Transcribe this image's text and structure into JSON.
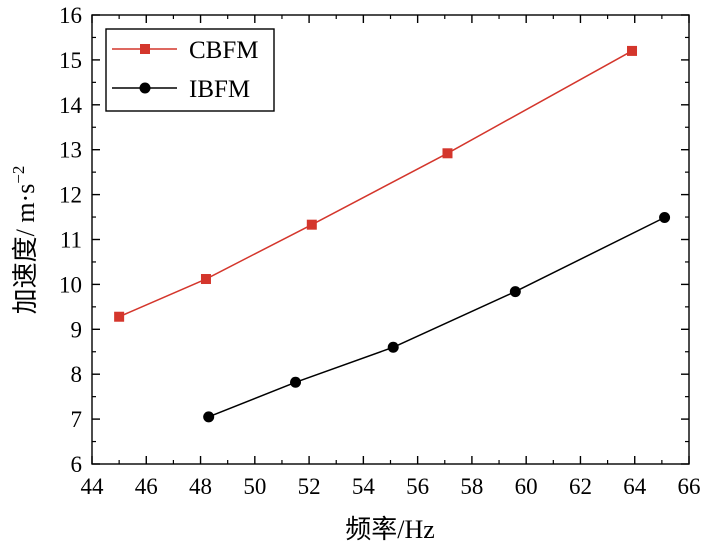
{
  "chart_data": {
    "type": "line",
    "xlabel": "频率/Hz",
    "ylabel_main": "加速度/ m·s",
    "ylabel_sup": "−2",
    "xlim": [
      44,
      66
    ],
    "ylim": [
      6,
      16
    ],
    "xticks": [
      "44",
      "46",
      "48",
      "50",
      "52",
      "54",
      "56",
      "58",
      "60",
      "62",
      "64",
      "66"
    ],
    "yticks": [
      "6",
      "7",
      "8",
      "9",
      "10",
      "11",
      "12",
      "13",
      "14",
      "15",
      "16"
    ],
    "legend_position": "top-left",
    "grid": false,
    "series": [
      {
        "name": "CBFM",
        "color": "#d4362c",
        "marker": "square",
        "x": [
          45.0,
          48.2,
          52.1,
          57.1,
          63.9
        ],
        "y": [
          9.28,
          10.12,
          11.33,
          12.92,
          15.2
        ]
      },
      {
        "name": "IBFM",
        "color": "#000000",
        "marker": "circle",
        "x": [
          48.3,
          51.5,
          55.1,
          59.6,
          65.1
        ],
        "y": [
          7.05,
          7.82,
          8.6,
          9.84,
          11.49
        ]
      }
    ]
  }
}
